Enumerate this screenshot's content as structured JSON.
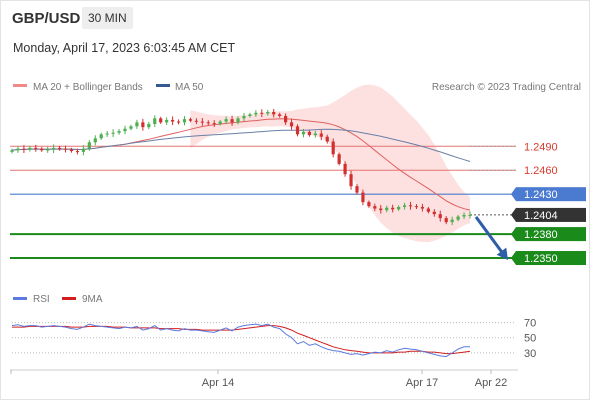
{
  "header": {
    "symbol": "GBP/USD",
    "timeframe": "30 MIN",
    "timestamp": "Monday, April 17, 2023 6:03:45 AM CET"
  },
  "legend": {
    "items": [
      {
        "label": "MA 20 + Bollinger Bands",
        "color": "#f08a8a"
      },
      {
        "label": "MA 50",
        "color": "#36598f"
      }
    ],
    "copyright": "Research © 2023 Trading Central"
  },
  "colors": {
    "up": "#4caf50",
    "down": "#d32f2f",
    "support": "#1a8a1a",
    "resistance": "#e57373",
    "pivot": "#4a7bd1",
    "price": "#333333",
    "band_fill": "#fbd7d5",
    "ma20": "#e06060",
    "ma50": "#6a7fa6",
    "rsi": "#5b7be0",
    "rsi_ma": "#d21e1e",
    "arrow": "#2f5da8"
  },
  "chart_data": [
    {
      "type": "candlestick",
      "title": "GBP/USD",
      "x_tick_labels": [
        "Apr 14",
        "Apr 17",
        "Apr 22"
      ],
      "ylim": [
        1.2335,
        1.2548
      ],
      "levels": [
        {
          "value": 1.249,
          "label": "1.2490",
          "kind": "resistance"
        },
        {
          "value": 1.246,
          "label": "1.2460",
          "kind": "resistance"
        },
        {
          "value": 1.243,
          "label": "1.2430",
          "kind": "pivot"
        },
        {
          "value": 1.2404,
          "label": "1.2404",
          "kind": "last_price"
        },
        {
          "value": 1.238,
          "label": "1.2380",
          "kind": "support"
        },
        {
          "value": 1.235,
          "label": "1.2350",
          "kind": "support"
        }
      ],
      "forecast_arrow": {
        "from": 1.2404,
        "to": 1.2355
      },
      "close": [
        1.2485,
        1.2487,
        1.2486,
        1.2488,
        1.2487,
        1.2485,
        1.2486,
        1.2488,
        1.2487,
        1.2486,
        1.2484,
        1.2483,
        1.2487,
        1.2495,
        1.25,
        1.2505,
        1.2506,
        1.2507,
        1.2509,
        1.2512,
        1.2515,
        1.252,
        1.2514,
        1.2518,
        1.2525,
        1.252,
        1.2523,
        1.2521,
        1.252,
        1.2524,
        1.2522,
        1.2521,
        1.252,
        1.2519,
        1.2518,
        1.2521,
        1.2524,
        1.252,
        1.2525,
        1.2528,
        1.253,
        1.2532,
        1.2531,
        1.2533,
        1.253,
        1.2528,
        1.252,
        1.2515,
        1.2505,
        1.2508,
        1.2504,
        1.2506,
        1.2502,
        1.2496,
        1.248,
        1.2468,
        1.2455,
        1.244,
        1.2432,
        1.242,
        1.2415,
        1.2412,
        1.241,
        1.2413,
        1.2411,
        1.2414,
        1.2416,
        1.2415,
        1.2414,
        1.2412,
        1.2408,
        1.2405,
        1.24,
        1.2395,
        1.2398,
        1.2402,
        1.2404,
        1.2404
      ],
      "rsi": {
        "series_labels": [
          "RSI",
          "9MA"
        ],
        "y_ticks": [
          70,
          50,
          30
        ],
        "ylim": [
          10,
          80
        ],
        "rsi": [
          66,
          67,
          65,
          66,
          66,
          64,
          65,
          66,
          65,
          64,
          62,
          61,
          64,
          68,
          66,
          65,
          64,
          63,
          62,
          64,
          63,
          65,
          60,
          62,
          66,
          60,
          62,
          60,
          59,
          62,
          60,
          60,
          59,
          58,
          57,
          60,
          63,
          59,
          64,
          66,
          67,
          68,
          66,
          68,
          64,
          62,
          55,
          50,
          42,
          45,
          40,
          42,
          38,
          35,
          33,
          32,
          30,
          28,
          29,
          27,
          29,
          31,
          30,
          33,
          31,
          34,
          36,
          35,
          34,
          32,
          30,
          28,
          26,
          25,
          30,
          35,
          38,
          38
        ],
        "ma": [
          64,
          64,
          64,
          65,
          65,
          65,
          65,
          65,
          65,
          65,
          64,
          64,
          64,
          65,
          65,
          65,
          65,
          64,
          64,
          64,
          63,
          63,
          63,
          63,
          63,
          62,
          62,
          62,
          62,
          61,
          61,
          61,
          60,
          60,
          60,
          60,
          60,
          60,
          61,
          62,
          63,
          64,
          65,
          66,
          66,
          65,
          63,
          60,
          56,
          53,
          50,
          47,
          44,
          41,
          38,
          36,
          34,
          33,
          32,
          31,
          30,
          30,
          30,
          30,
          30,
          31,
          31,
          32,
          32,
          32,
          31,
          31,
          30,
          29,
          29,
          30,
          31,
          32
        ]
      }
    }
  ]
}
